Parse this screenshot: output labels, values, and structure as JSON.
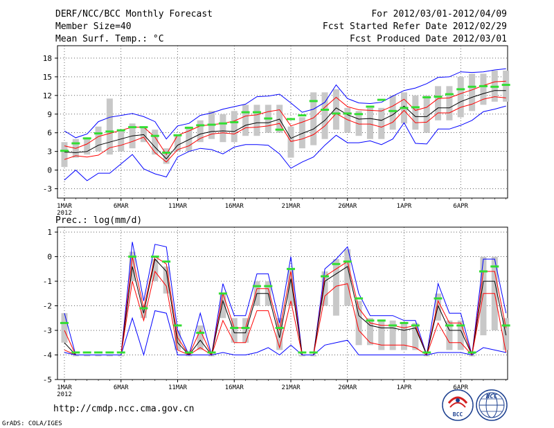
{
  "header": {
    "title": "DERF/NCC/BCC Monthly Forecast",
    "member_size": "Member Size=40",
    "variable1": "Mean Surf. Temp.: °C",
    "period": "For 2012/03/01-2012/04/09",
    "started": "Fcst Started Refer Date 2012/02/29",
    "produced": "Fcst Produced Date 2012/03/01"
  },
  "footer": {
    "url": "http://cmdp.ncc.cma.gov.cn",
    "grads": "GrADS: COLA/IGES",
    "logo1": "BCC",
    "logo2": "NCC"
  },
  "colors": {
    "max": "#0000ff",
    "min": "#0000ff",
    "upper": "#ff0000",
    "lower": "#ff0000",
    "mean": "#000000",
    "box": "#c8c8c8",
    "obs": "#33dd33",
    "grid": "#000000"
  },
  "chart_data": [
    {
      "type": "line",
      "title": "Mean Surf. Temp.: °C",
      "ylabel": "°C",
      "ylim": [
        -4.5,
        20
      ],
      "yticks": [
        -3,
        0,
        3,
        6,
        9,
        12,
        15,
        18
      ],
      "xlabels": [
        "1MAR",
        "6MAR",
        "11MAR",
        "16MAR",
        "21MAR",
        "26MAR",
        "1APR",
        "6APR"
      ],
      "xlabel_year": "2012",
      "n_days": 40,
      "series": [
        {
          "name": "max",
          "values": [
            6.3,
            5.2,
            5.8,
            7.8,
            8.5,
            8.8,
            9.1,
            8.6,
            7.8,
            5.0,
            7.1,
            7.5,
            8.8,
            9.2,
            9.8,
            10.2,
            10.6,
            11.8,
            11.9,
            12.2,
            10.8,
            9.3,
            9.8,
            10.9,
            13.7,
            11.5,
            10.8,
            10.7,
            10.9,
            11.9,
            12.8,
            13.2,
            13.9,
            14.9,
            15.0,
            15.8,
            15.7,
            15.8,
            16.1,
            16.3
          ]
        },
        {
          "name": "upper",
          "values": [
            3.9,
            3.5,
            4.2,
            5.4,
            5.9,
            6.4,
            6.9,
            6.9,
            5.3,
            2.5,
            5.6,
            6.3,
            7.1,
            7.3,
            7.5,
            7.9,
            8.7,
            8.9,
            9.4,
            9.7,
            7.1,
            7.7,
            8.4,
            10.1,
            11.7,
            10.2,
            9.7,
            9.6,
            9.5,
            10.3,
            11.4,
            9.6,
            10.1,
            11.5,
            11.6,
            12.3,
            12.9,
            13.6,
            14.2,
            14.3
          ]
        },
        {
          "name": "mean",
          "values": [
            2.9,
            2.8,
            3.0,
            4.0,
            4.5,
            5.0,
            5.5,
            5.7,
            3.7,
            1.8,
            4.0,
            4.9,
            5.8,
            6.2,
            6.3,
            6.2,
            7.2,
            7.6,
            7.6,
            8.2,
            5.1,
            5.9,
            6.6,
            8.0,
            10.0,
            8.9,
            8.2,
            8.3,
            8.0,
            8.9,
            10.3,
            8.6,
            8.6,
            10.0,
            10.0,
            11.0,
            11.7,
            12.3,
            12.8,
            12.8
          ]
        },
        {
          "name": "lower",
          "values": [
            1.7,
            2.3,
            2.1,
            2.4,
            3.6,
            4.0,
            4.6,
            5.3,
            2.8,
            1.3,
            3.3,
            3.9,
            5.1,
            5.8,
            6.0,
            5.8,
            6.8,
            6.9,
            7.1,
            7.5,
            4.6,
            5.0,
            5.7,
            7.1,
            9.1,
            8.1,
            7.4,
            7.4,
            6.9,
            7.7,
            9.6,
            7.6,
            7.7,
            9.2,
            9.2,
            10.1,
            10.6,
            11.4,
            11.8,
            11.6
          ]
        },
        {
          "name": "min",
          "values": [
            -1.6,
            0.0,
            -1.7,
            -0.5,
            -0.5,
            1.0,
            2.5,
            0.2,
            -0.6,
            -1.1,
            2.1,
            3.0,
            3.5,
            3.3,
            2.6,
            3.7,
            4.1,
            4.1,
            4.0,
            2.6,
            0.3,
            1.3,
            2.1,
            4.0,
            5.6,
            4.4,
            4.4,
            4.7,
            4.1,
            5.0,
            7.6,
            4.3,
            4.2,
            6.6,
            6.6,
            7.2,
            8.0,
            9.4,
            9.8,
            10.3
          ]
        }
      ],
      "box_low": [
        0.5,
        2.0,
        2.5,
        3.0,
        2.5,
        3.0,
        3.5,
        4.5,
        2.5,
        1.0,
        3.0,
        3.0,
        4.5,
        5.0,
        4.5,
        4.5,
        5.5,
        5.5,
        6.0,
        6.0,
        2.0,
        3.5,
        4.0,
        5.0,
        6.5,
        6.0,
        5.5,
        5.0,
        5.0,
        6.5,
        7.5,
        6.5,
        6.0,
        8.0,
        8.0,
        8.5,
        9.5,
        10.5,
        11.0,
        11.0
      ],
      "box_high": [
        4.5,
        5.0,
        5.0,
        7.0,
        11.5,
        6.5,
        7.5,
        7.0,
        6.5,
        3.5,
        5.5,
        7.0,
        8.0,
        9.5,
        9.0,
        9.5,
        10.5,
        10.5,
        10.5,
        10.5,
        7.0,
        8.5,
        12.5,
        12.5,
        13.0,
        10.0,
        9.5,
        10.0,
        10.0,
        12.0,
        12.5,
        12.0,
        12.0,
        13.5,
        13.5,
        15.0,
        15.5,
        15.5,
        16.0,
        16.0
      ],
      "observed": [
        3.1,
        4.3,
        5.1,
        5.9,
        6.2,
        6.4,
        6.9,
        6.9,
        5.5,
        2.8,
        5.6,
        6.8,
        7.2,
        7.3,
        7.5,
        7.7,
        9.3,
        9.3,
        8.3,
        6.5,
        8.2,
        8.8,
        11.1,
        9.7,
        9.1,
        9.1,
        9.0,
        10.2,
        11.3,
        9.5,
        10.0,
        10.1,
        11.7,
        11.8,
        12.2,
        13.0,
        13.4,
        13.5,
        13.4,
        13.7
      ]
    },
    {
      "type": "line",
      "title": "Prec.: log(mm/d)",
      "ylabel": "log(mm/d)",
      "ylim": [
        -5,
        1.2
      ],
      "yticks": [
        -5,
        -4,
        -3,
        -2,
        -1,
        0,
        1
      ],
      "xlabels": [
        "1MAR",
        "6MAR",
        "11MAR",
        "16MAR",
        "21MAR",
        "26MAR",
        "1APR",
        "6APR"
      ],
      "xlabel_year": "2012",
      "n_days": 40,
      "series": [
        {
          "name": "max",
          "values": [
            -2.3,
            -4.0,
            -4.0,
            -4.0,
            -4.0,
            -4.0,
            0.6,
            -1.8,
            0.5,
            0.4,
            -3.0,
            -4.0,
            -2.3,
            -4.0,
            -1.1,
            -2.4,
            -2.4,
            -0.7,
            -0.7,
            -2.7,
            0.0,
            -4.0,
            -4.0,
            -0.5,
            -0.1,
            0.4,
            -1.5,
            -2.4,
            -2.4,
            -2.4,
            -2.6,
            -2.6,
            -4.0,
            -1.1,
            -2.3,
            -2.3,
            -4.0,
            -0.1,
            -0.1,
            -2.3
          ]
        },
        {
          "name": "upper",
          "values": [
            -3.0,
            -4.0,
            -4.0,
            -4.0,
            -4.0,
            -4.0,
            0.0,
            -2.1,
            0.0,
            -0.3,
            -3.3,
            -4.0,
            -3.0,
            -4.0,
            -1.5,
            -2.9,
            -2.9,
            -1.3,
            -1.3,
            -3.0,
            -0.6,
            -4.0,
            -4.0,
            -0.8,
            -0.5,
            -0.2,
            -2.1,
            -2.7,
            -2.8,
            -2.8,
            -2.9,
            -2.8,
            -4.0,
            -1.8,
            -2.7,
            -2.7,
            -4.0,
            -0.6,
            -0.6,
            -2.9
          ]
        },
        {
          "name": "mean",
          "values": [
            -3.5,
            -4.0,
            -4.0,
            -4.0,
            -4.0,
            -4.0,
            -0.4,
            -2.3,
            -0.1,
            -0.6,
            -3.5,
            -4.0,
            -3.4,
            -4.0,
            -1.8,
            -3.1,
            -3.1,
            -1.5,
            -1.5,
            -3.3,
            -0.9,
            -4.0,
            -4.0,
            -1.0,
            -0.7,
            -0.4,
            -2.4,
            -2.8,
            -2.9,
            -2.9,
            -3.0,
            -2.9,
            -4.0,
            -2.0,
            -3.0,
            -3.0,
            -4.0,
            -1.0,
            -1.0,
            -3.2
          ]
        },
        {
          "name": "lower",
          "values": [
            -3.8,
            -4.0,
            -4.0,
            -4.0,
            -4.0,
            -4.0,
            -1.0,
            -2.6,
            -0.6,
            -1.2,
            -3.8,
            -4.0,
            -3.7,
            -4.0,
            -2.6,
            -3.5,
            -3.5,
            -2.2,
            -2.2,
            -3.7,
            -1.8,
            -4.0,
            -4.0,
            -1.6,
            -1.2,
            -1.1,
            -3.0,
            -3.5,
            -3.6,
            -3.6,
            -3.6,
            -3.7,
            -4.0,
            -2.7,
            -3.5,
            -3.5,
            -4.0,
            -1.5,
            -1.5,
            -3.9
          ]
        },
        {
          "name": "min",
          "values": [
            -3.9,
            -4.0,
            -4.0,
            -4.0,
            -4.0,
            -4.0,
            -2.5,
            -4.0,
            -2.2,
            -2.3,
            -4.0,
            -4.0,
            -4.0,
            -4.0,
            -3.9,
            -4.0,
            -4.0,
            -3.9,
            -3.7,
            -4.0,
            -3.6,
            -4.0,
            -4.0,
            -3.6,
            -3.5,
            -3.4,
            -4.0,
            -4.0,
            -4.0,
            -4.0,
            -4.0,
            -4.0,
            -4.0,
            -3.9,
            -3.9,
            -3.9,
            -4.0,
            -3.7,
            -3.8,
            -3.9
          ]
        },
        {
          "name": "observed",
          "values": [
            -2.7,
            -3.9,
            -3.9,
            -3.9,
            -3.9,
            -3.9,
            0.0,
            -2.1,
            0.0,
            -0.2,
            -2.8,
            -3.9,
            -3.1,
            -3.9,
            -1.5,
            -2.9,
            -2.9,
            -1.2,
            -1.2,
            -2.9,
            -0.5,
            -3.9,
            -3.9,
            -0.8,
            -0.3,
            -0.2,
            -1.7,
            -2.6,
            -2.6,
            -2.8,
            -2.7,
            -2.8,
            -3.9,
            -1.7,
            -2.8,
            -2.8,
            -3.9,
            -0.6,
            -0.4,
            -2.8
          ]
        }
      ],
      "box_low": [
        -3.5,
        -4.0,
        -4.0,
        -4.0,
        -4.0,
        -4.0,
        -1.0,
        -2.5,
        -1.0,
        -1.5,
        -3.8,
        -4.0,
        -3.8,
        -4.0,
        -2.5,
        -3.5,
        -3.5,
        -2.0,
        -2.0,
        -3.8,
        -2.0,
        -4.0,
        -4.0,
        -2.0,
        -2.4,
        -2.0,
        -3.6,
        -3.6,
        -3.8,
        -3.8,
        -3.8,
        -3.8,
        -4.0,
        -2.6,
        -3.8,
        -3.8,
        -4.0,
        -3.2,
        -3.0,
        -3.8
      ],
      "box_high": [
        -2.3,
        -4.0,
        -4.0,
        -4.0,
        -4.0,
        -4.0,
        0.2,
        -2.0,
        -0.1,
        -0.4,
        -3.0,
        -4.0,
        -2.8,
        -4.0,
        -1.5,
        -2.5,
        -2.5,
        -1.0,
        -1.0,
        -2.5,
        -0.5,
        -4.0,
        -4.0,
        -0.6,
        -0.1,
        0.3,
        -1.8,
        -2.5,
        -2.6,
        -2.6,
        -2.7,
        -2.7,
        -4.0,
        -1.5,
        -2.6,
        -2.6,
        -4.0,
        0.0,
        0.0,
        -2.5
      ]
    }
  ]
}
